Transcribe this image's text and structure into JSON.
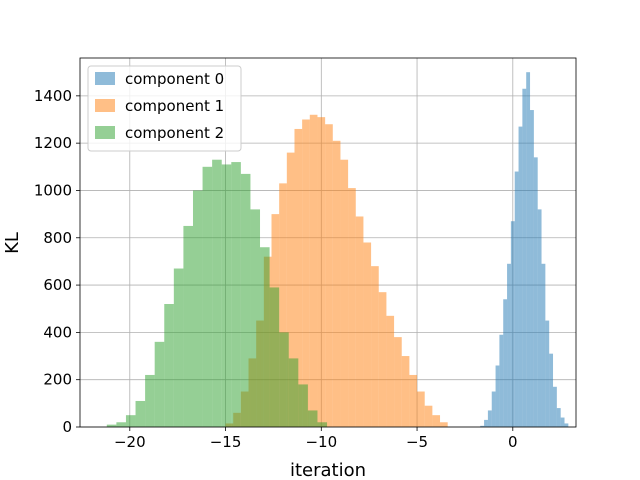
{
  "chart_data": {
    "type": "bar",
    "subtype": "overlaid histogram",
    "xlabel": "iteration",
    "ylabel": "KL",
    "xlim": [
      -22.6,
      3.3
    ],
    "ylim": [
      0,
      1560
    ],
    "grid": true,
    "legend_position": "top-left",
    "xticks": [
      -20,
      -15,
      -10,
      -5,
      0
    ],
    "xtick_labels": [
      "−20",
      "−15",
      "−10",
      "−5",
      "0"
    ],
    "yticks": [
      0,
      200,
      400,
      600,
      800,
      1000,
      1200,
      1400
    ],
    "yticks_labels": [
      "0",
      "200",
      "400",
      "600",
      "800",
      "1000",
      "1200",
      "1400"
    ],
    "bar_opacity": 0.5,
    "series": [
      {
        "name": "component 0",
        "color": "#1f77b4",
        "x_start": -1.7,
        "bin_width": 0.2,
        "values": [
          5,
          30,
          70,
          150,
          260,
          390,
          540,
          690,
          870,
          1080,
          1270,
          1430,
          1500,
          1340,
          1140,
          920,
          690,
          450,
          310,
          170,
          80,
          40,
          15
        ]
      },
      {
        "name": "component 1",
        "color": "#ff7f0e",
        "x_start": -15.0,
        "bin_width": 0.4,
        "values": [
          15,
          60,
          150,
          290,
          450,
          720,
          900,
          1030,
          1160,
          1260,
          1300,
          1320,
          1310,
          1280,
          1210,
          1130,
          1010,
          890,
          780,
          680,
          570,
          470,
          380,
          300,
          220,
          150,
          90,
          50,
          20
        ]
      },
      {
        "name": "component 2",
        "color": "#2ca02c",
        "x_start": -21.2,
        "bin_width": 0.5,
        "values": [
          10,
          20,
          50,
          110,
          220,
          360,
          520,
          670,
          850,
          1000,
          1100,
          1130,
          1110,
          1120,
          1070,
          920,
          760,
          590,
          400,
          290,
          180,
          70,
          20
        ]
      }
    ]
  }
}
